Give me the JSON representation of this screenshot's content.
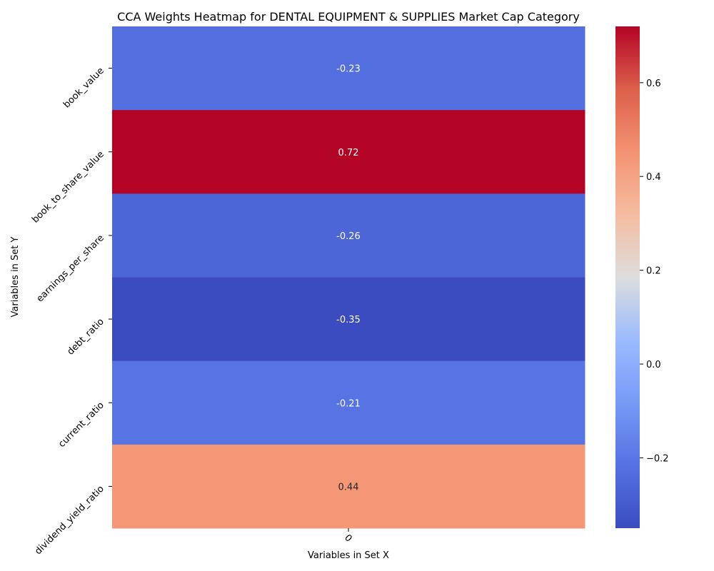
{
  "chart_data": {
    "type": "heatmap",
    "title": "CCA Weights Heatmap for DENTAL EQUIPMENT & SUPPLIES Market Cap Category",
    "xlabel": "Variables in Set X",
    "ylabel": "Variables in Set Y",
    "x_categories": [
      "0"
    ],
    "y_categories": [
      "book_value",
      "book_to_share_value",
      "earnings_per_share",
      "debt_ratio",
      "current_ratio",
      "dividend_yield_ratio"
    ],
    "values": [
      [
        -0.23
      ],
      [
        0.72
      ],
      [
        -0.26
      ],
      [
        -0.35
      ],
      [
        -0.21
      ],
      [
        0.44
      ]
    ],
    "value_labels": [
      [
        "-0.23"
      ],
      [
        "0.72"
      ],
      [
        "-0.26"
      ],
      [
        "-0.35"
      ],
      [
        "-0.21"
      ],
      [
        "0.44"
      ]
    ],
    "colormap": "coolwarm",
    "vmin": -0.35,
    "vmax": 0.72,
    "colorbar_ticks": [
      -0.2,
      0.0,
      0.2,
      0.4,
      0.6
    ],
    "colorbar_tick_labels": [
      "−0.2",
      "0.0",
      "0.2",
      "0.4",
      "0.6"
    ]
  }
}
